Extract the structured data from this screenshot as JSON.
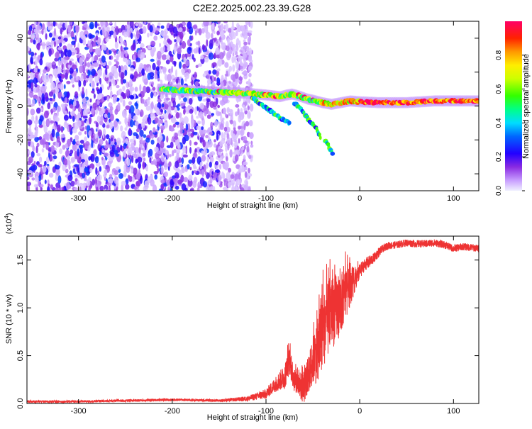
{
  "title": "C2E2.2025.002.23.39.G28",
  "chart_data": [
    {
      "type": "heatmap",
      "xlabel": "Height of straight line (km)",
      "ylabel": "Frequency (Hz)",
      "xlim": [
        -355,
        127
      ],
      "ylim": [
        -50,
        50
      ],
      "xticks": [
        -300,
        -200,
        -100,
        0,
        100
      ],
      "yticks": [
        -40,
        -20,
        0,
        20,
        40
      ],
      "colorbar": {
        "label": "Normalized spectral amplitude",
        "range": [
          0,
          1
        ],
        "ticks": [
          "0.0",
          "0.2",
          "0.4",
          "0.6",
          "0.8"
        ],
        "colormap": "rainbow"
      },
      "noise_region_x": [
        -355,
        -125
      ],
      "signal_track": {
        "x": [
          -210,
          -185,
          -160,
          -140,
          -120,
          -100,
          -92,
          -85,
          -78,
          -72,
          -65,
          -60,
          -55,
          -50,
          -40,
          -30,
          -20,
          -10,
          0,
          20,
          50,
          80,
          100,
          127
        ],
        "y": [
          10,
          9,
          8.5,
          8,
          7.5,
          6.5,
          6,
          5.5,
          6.5,
          7,
          6,
          5,
          4,
          3.5,
          2,
          1,
          2,
          3,
          2.5,
          2,
          2,
          3,
          3,
          3
        ]
      },
      "secondary_branches": [
        {
          "x": [
            -115,
            -105,
            -95,
            -85,
            -75
          ],
          "y": [
            5,
            1,
            -3,
            -7,
            -10
          ]
        },
        {
          "x": [
            -70,
            -62,
            -55,
            -48,
            -42
          ],
          "y": [
            2,
            -2,
            -8,
            -12,
            -18
          ]
        },
        {
          "x": [
            -37,
            -33,
            -29
          ],
          "y": [
            -20,
            -24,
            -28
          ]
        }
      ]
    },
    {
      "type": "line",
      "xlabel": "Height of straight line (km)",
      "ylabel": "SNR (10 * v/v)",
      "y_multiplier": "(x10",
      "y_multiplier_exp": "4",
      "xlim": [
        -355,
        127
      ],
      "ylim": [
        0,
        1.75
      ],
      "xticks": [
        -300,
        -200,
        -100,
        0,
        100
      ],
      "yticks": [
        "0.0",
        "0.5",
        "1.0",
        "1.5"
      ],
      "series": [
        {
          "color": "#ee3333",
          "x": [
            -355,
            -300,
            -250,
            -200,
            -150,
            -120,
            -100,
            -90,
            -80,
            -75,
            -70,
            -60,
            -55,
            -50,
            -45,
            -40,
            -35,
            -30,
            -25,
            -20,
            -15,
            -10,
            -5,
            0,
            5,
            10,
            15,
            20,
            25,
            30,
            40,
            50,
            60,
            70,
            80,
            90,
            100,
            110,
            120,
            127
          ],
          "y": [
            0.02,
            0.02,
            0.03,
            0.04,
            0.03,
            0.05,
            0.1,
            0.2,
            0.28,
            0.45,
            0.25,
            0.15,
            0.3,
            0.45,
            0.55,
            0.75,
            0.85,
            0.95,
            1.0,
            1.05,
            1.15,
            1.22,
            1.3,
            1.38,
            1.45,
            1.48,
            1.52,
            1.58,
            1.62,
            1.65,
            1.66,
            1.68,
            1.67,
            1.67,
            1.68,
            1.66,
            1.62,
            1.64,
            1.63,
            1.62
          ],
          "noise": [
            0.01,
            0.01,
            0.01,
            0.01,
            0.01,
            0.02,
            0.04,
            0.06,
            0.1,
            0.12,
            0.1,
            0.12,
            0.15,
            0.2,
            0.25,
            0.3,
            0.3,
            0.3,
            0.28,
            0.25,
            0.2,
            0.15,
            0.1,
            0.06,
            0.05,
            0.05,
            0.04,
            0.04,
            0.03,
            0.03,
            0.03,
            0.03,
            0.03,
            0.03,
            0.03,
            0.03,
            0.03,
            0.03,
            0.03,
            0.03
          ]
        }
      ]
    }
  ]
}
